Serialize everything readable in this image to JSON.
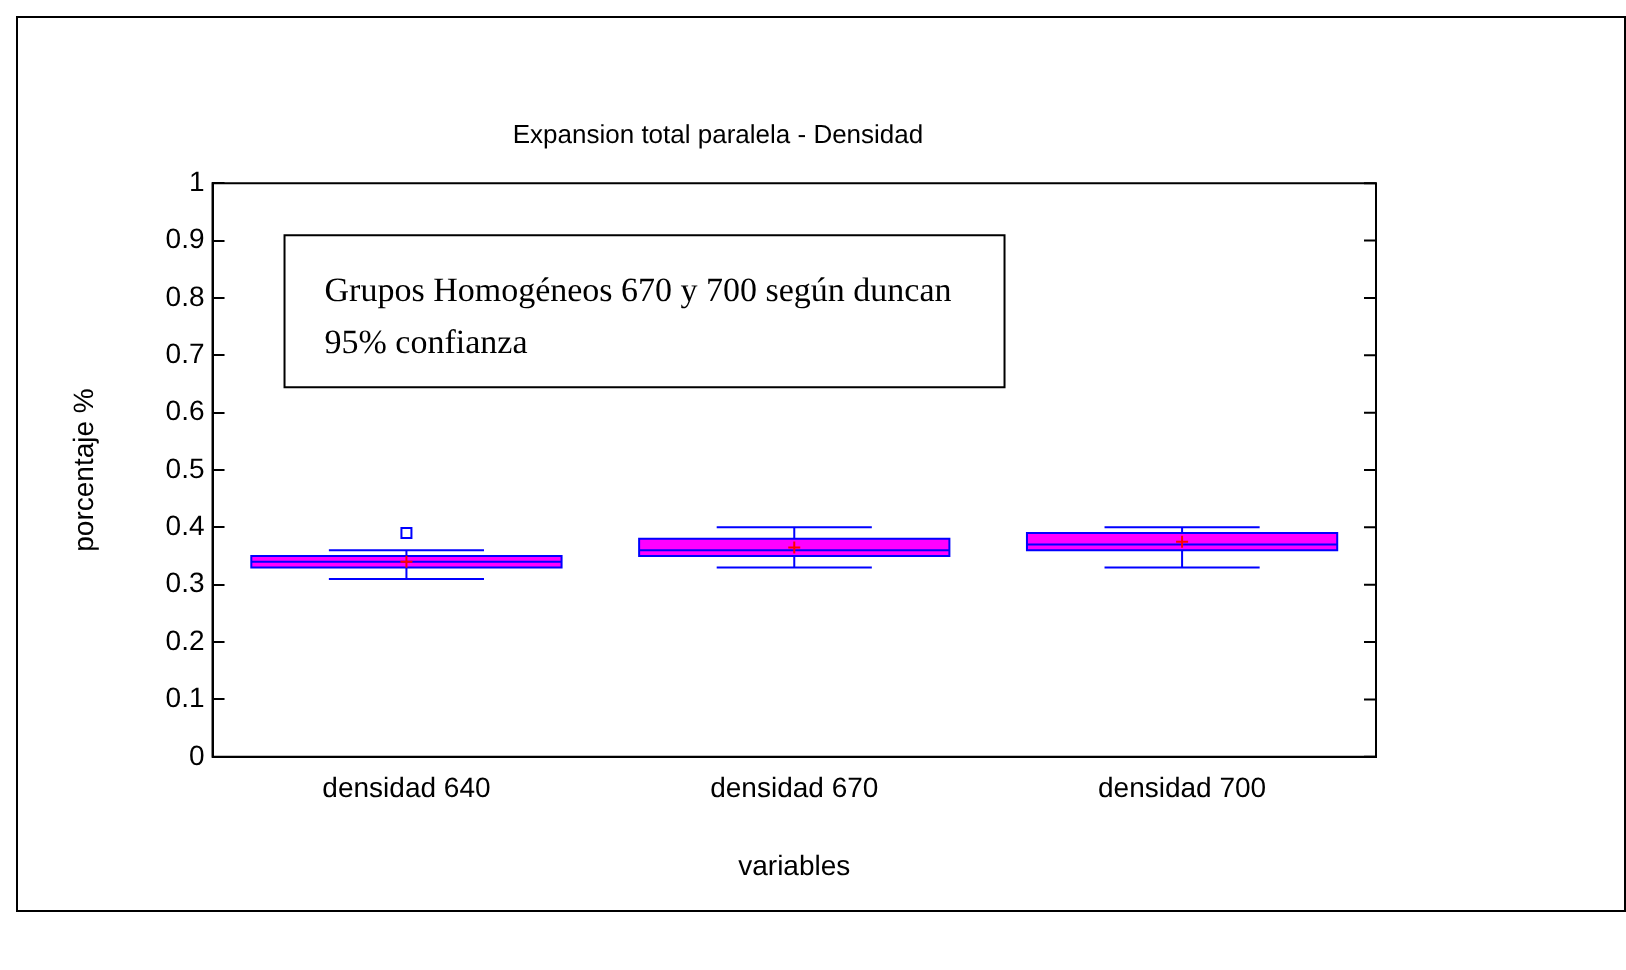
{
  "chart_data": {
    "type": "box",
    "title": "Expansion total paralela - Densidad",
    "xlabel": "variables",
    "ylabel": "porcentaje %",
    "categories": [
      "densidad 640",
      "densidad 670",
      "densidad 700"
    ],
    "boxes": [
      {
        "low": 0.31,
        "q1": 0.33,
        "median": 0.34,
        "q3": 0.35,
        "high": 0.36,
        "mean": 0.34,
        "outliers": [
          0.39
        ]
      },
      {
        "low": 0.33,
        "q1": 0.35,
        "median": 0.36,
        "q3": 0.38,
        "high": 0.4,
        "mean": 0.365
      },
      {
        "low": 0.33,
        "q1": 0.36,
        "median": 0.37,
        "q3": 0.39,
        "high": 0.4,
        "mean": 0.375
      }
    ],
    "color": "#ff00ff",
    "ylim": [
      0,
      1
    ],
    "yticks": [
      0,
      0.1,
      0.2,
      0.3,
      0.4,
      0.5,
      0.6,
      0.7,
      0.8,
      0.9,
      1
    ],
    "grid": false,
    "annotations": [
      "Grupos Homogéneos 670 y 700 según duncan 95% confianza"
    ]
  }
}
